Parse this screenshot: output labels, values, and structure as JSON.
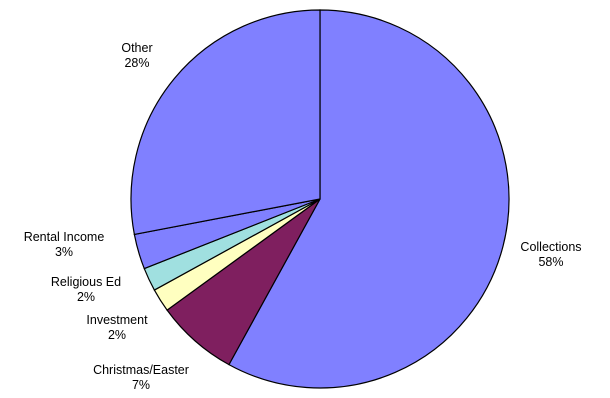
{
  "chart_data": {
    "type": "pie",
    "title": "",
    "start_angle_deg": 0,
    "direction": "clockwise",
    "slices": [
      {
        "label": "Collections",
        "value": 58,
        "value_label": "58%",
        "color": "#8080ff"
      },
      {
        "label": "Christmas/Easter",
        "value": 7,
        "value_label": "7%",
        "color": "#7f1f5f"
      },
      {
        "label": "Investment",
        "value": 2,
        "value_label": "2%",
        "color": "#ffffc0"
      },
      {
        "label": "Religious Ed",
        "value": 2,
        "value_label": "2%",
        "color": "#a0e0e0"
      },
      {
        "label": "Rental Income",
        "value": 3,
        "value_label": "3%",
        "color": "#8080ff"
      },
      {
        "label": "Other",
        "value": 28,
        "value_label": "28%",
        "color": "#8080ff"
      }
    ],
    "legend": "none"
  }
}
